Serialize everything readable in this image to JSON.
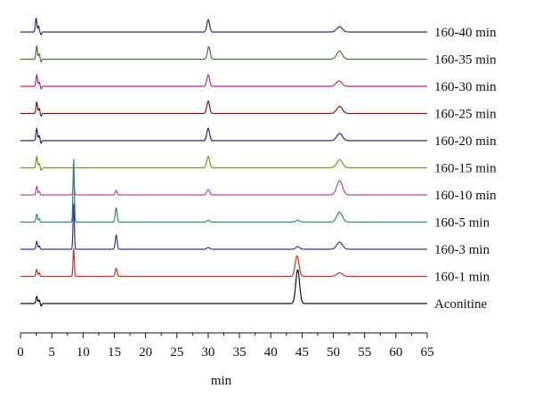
{
  "chart_data": {
    "type": "line",
    "title": "",
    "xlabel": "min",
    "ylabel": "",
    "xlim": [
      0,
      65
    ],
    "x_ticks": [
      0,
      5,
      10,
      15,
      20,
      25,
      30,
      35,
      40,
      45,
      50,
      55,
      60,
      65
    ],
    "x_tick_labels": [
      "0",
      "5",
      "10",
      "15",
      "20",
      "25",
      "30",
      "35",
      "40",
      "45",
      "50",
      "55",
      "60",
      "65"
    ],
    "grid": false,
    "legend": "none",
    "series": [
      {
        "name": "160-40 min",
        "color": "#2b2a8f",
        "peaks": [
          {
            "x": 2.5,
            "h": 16,
            "w": 0.12
          },
          {
            "x": 2.9,
            "h": 7,
            "w": 0.1
          },
          {
            "x": 3.3,
            "h": -3,
            "w": 0.1
          },
          {
            "x": 30.0,
            "h": 14,
            "w": 0.22
          },
          {
            "x": 51.0,
            "h": 6,
            "w": 0.45
          }
        ]
      },
      {
        "name": "160-35 min",
        "color": "#3a7a2a",
        "peaks": [
          {
            "x": 2.6,
            "h": 15,
            "w": 0.12
          },
          {
            "x": 3.0,
            "h": 6,
            "w": 0.1
          },
          {
            "x": 3.3,
            "h": -3,
            "w": 0.1
          },
          {
            "x": 30.1,
            "h": 14,
            "w": 0.22
          },
          {
            "x": 51.0,
            "h": 9,
            "w": 0.45
          }
        ]
      },
      {
        "name": "160-30 min",
        "color": "#c0237a",
        "peaks": [
          {
            "x": 2.6,
            "h": 13,
            "w": 0.12
          },
          {
            "x": 3.0,
            "h": 5,
            "w": 0.1
          },
          {
            "x": 3.3,
            "h": -3,
            "w": 0.1
          },
          {
            "x": 30.0,
            "h": 13,
            "w": 0.22
          },
          {
            "x": 50.9,
            "h": 6,
            "w": 0.45
          }
        ]
      },
      {
        "name": "160-25 min",
        "color": "#7a1a12",
        "peaks": [
          {
            "x": 2.6,
            "h": 13,
            "w": 0.12
          },
          {
            "x": 3.0,
            "h": 6,
            "w": 0.1
          },
          {
            "x": 3.3,
            "h": -3,
            "w": 0.1
          },
          {
            "x": 30.0,
            "h": 14,
            "w": 0.22
          },
          {
            "x": 51.0,
            "h": 8,
            "w": 0.45
          }
        ]
      },
      {
        "name": "160-20 min",
        "color": "#1f2a7a",
        "peaks": [
          {
            "x": 2.6,
            "h": 14,
            "w": 0.12
          },
          {
            "x": 3.0,
            "h": 6,
            "w": 0.1
          },
          {
            "x": 3.3,
            "h": -3,
            "w": 0.1
          },
          {
            "x": 30.0,
            "h": 14,
            "w": 0.22
          },
          {
            "x": 51.0,
            "h": 8,
            "w": 0.45
          }
        ]
      },
      {
        "name": "160-15 min",
        "color": "#8c8a1c",
        "peaks": [
          {
            "x": 2.6,
            "h": 13,
            "w": 0.12
          },
          {
            "x": 3.0,
            "h": 5,
            "w": 0.1
          },
          {
            "x": 3.3,
            "h": -3,
            "w": 0.1
          },
          {
            "x": 30.0,
            "h": 13,
            "w": 0.22
          },
          {
            "x": 51.0,
            "h": 9,
            "w": 0.45
          }
        ]
      },
      {
        "name": "160-10 min",
        "color": "#b04aa8",
        "peaks": [
          {
            "x": 2.6,
            "h": 10,
            "w": 0.12
          },
          {
            "x": 3.0,
            "h": 4,
            "w": 0.1
          },
          {
            "x": 8.5,
            "h": 16,
            "w": 0.1
          },
          {
            "x": 15.3,
            "h": 5,
            "w": 0.15
          },
          {
            "x": 30.0,
            "h": 6,
            "w": 0.22
          },
          {
            "x": 51.0,
            "h": 16,
            "w": 0.45
          }
        ]
      },
      {
        "name": "160-5 min",
        "color": "#2a8a7a",
        "peaks": [
          {
            "x": 2.6,
            "h": 9,
            "w": 0.12
          },
          {
            "x": 3.0,
            "h": 4,
            "w": 0.1
          },
          {
            "x": 8.5,
            "h": 72,
            "w": 0.1
          },
          {
            "x": 15.3,
            "h": 16,
            "w": 0.15
          },
          {
            "x": 30.0,
            "h": 2,
            "w": 0.22
          },
          {
            "x": 44.3,
            "h": 2,
            "w": 0.3
          },
          {
            "x": 51.0,
            "h": 11,
            "w": 0.45
          }
        ]
      },
      {
        "name": "160-3 min",
        "color": "#2f33b8",
        "peaks": [
          {
            "x": 2.6,
            "h": 9,
            "w": 0.12
          },
          {
            "x": 3.0,
            "h": 4,
            "w": 0.1
          },
          {
            "x": 8.5,
            "h": 52,
            "w": 0.1
          },
          {
            "x": 15.3,
            "h": 16,
            "w": 0.15
          },
          {
            "x": 30.0,
            "h": 2,
            "w": 0.22
          },
          {
            "x": 44.3,
            "h": 3,
            "w": 0.3
          },
          {
            "x": 51.0,
            "h": 8,
            "w": 0.45
          }
        ]
      },
      {
        "name": "160-1 min",
        "color": "#d83018",
        "peaks": [
          {
            "x": 2.6,
            "h": 8,
            "w": 0.12
          },
          {
            "x": 3.0,
            "h": 4,
            "w": 0.1
          },
          {
            "x": 8.5,
            "h": 32,
            "w": 0.1
          },
          {
            "x": 15.3,
            "h": 9,
            "w": 0.15
          },
          {
            "x": 44.2,
            "h": 23,
            "w": 0.3
          },
          {
            "x": 51.0,
            "h": 4,
            "w": 0.45
          }
        ]
      },
      {
        "name": "Aconitine",
        "color": "#111111",
        "peaks": [
          {
            "x": 2.6,
            "h": 8,
            "w": 0.12
          },
          {
            "x": 3.0,
            "h": 4,
            "w": 0.1
          },
          {
            "x": 3.3,
            "h": -3,
            "w": 0.1
          },
          {
            "x": 44.3,
            "h": 38,
            "w": 0.3
          }
        ]
      }
    ]
  }
}
